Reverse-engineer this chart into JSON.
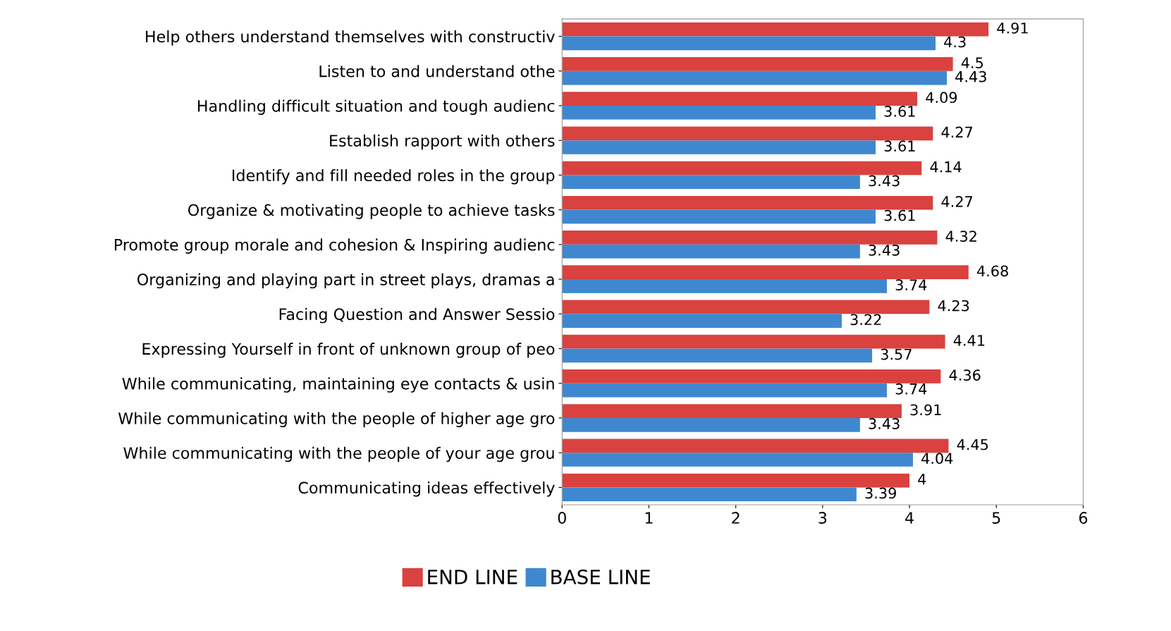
{
  "chart_data": {
    "type": "bar",
    "orientation": "horizontal",
    "categories": [
      "Help others understand themselves with constructiv",
      "Listen to and understand othe",
      "Handling difficult situation and tough audienc",
      "Establish rapport with others",
      "Identify and fill needed roles in the group",
      "Organize & motivating people to achieve tasks",
      "Promote group morale and cohesion & Inspiring audienc",
      "Organizing and playing part in street plays, dramas a",
      "Facing Question and Answer Sessio",
      "Expressing Yourself in front of unknown group of peo",
      "While communicating, maintaining eye contacts & usin",
      "While communicating with the people of higher age gro",
      "While communicating with the people of your age grou",
      "Communicating ideas effectively"
    ],
    "series": [
      {
        "name": "END LINE",
        "color": "#d9423f",
        "values": [
          4.91,
          4.5,
          4.09,
          4.27,
          4.14,
          4.27,
          4.32,
          4.68,
          4.23,
          4.41,
          4.36,
          3.91,
          4.45,
          4
        ]
      },
      {
        "name": "BASE LINE",
        "color": "#3f88d0",
        "values": [
          4.3,
          4.43,
          3.61,
          3.61,
          3.43,
          3.61,
          3.43,
          3.74,
          3.22,
          3.57,
          3.74,
          3.43,
          4.04,
          3.39
        ]
      }
    ],
    "xlim": [
      0,
      6
    ],
    "xticks": [
      0,
      1,
      2,
      3,
      4,
      5,
      6
    ],
    "data_labels": true,
    "legend": "bottom",
    "grid": false
  }
}
